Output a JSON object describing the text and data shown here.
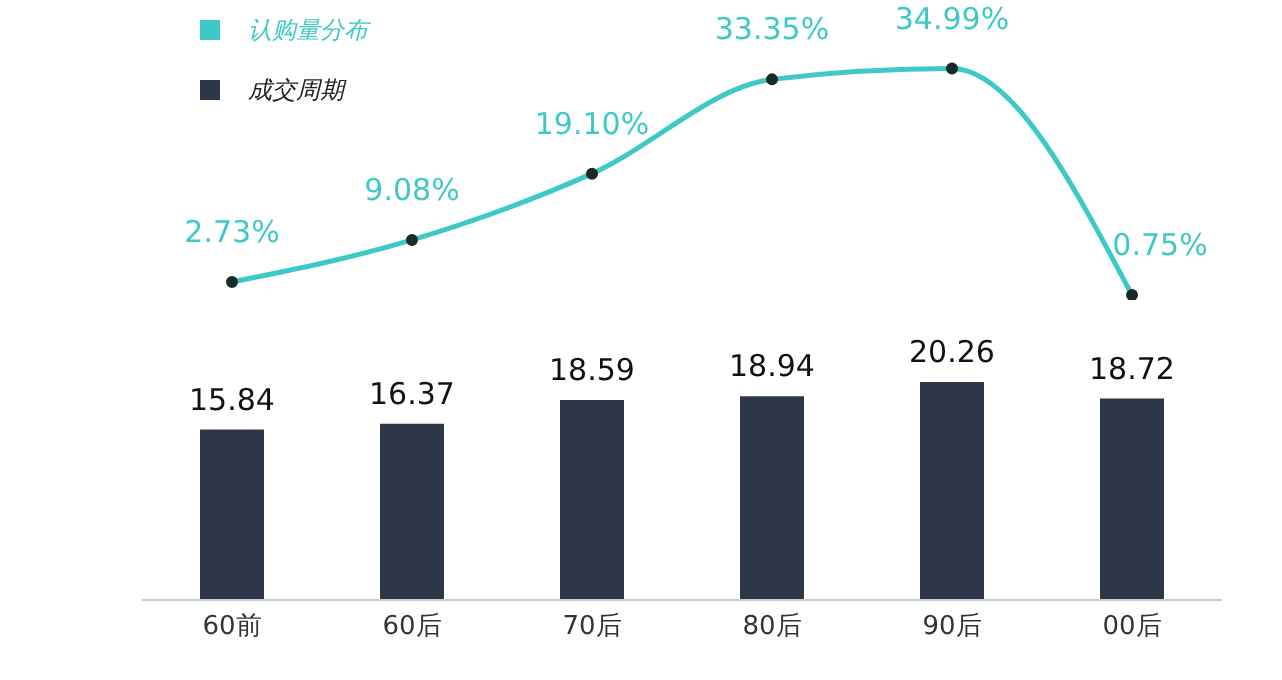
{
  "chart_data": [
    {
      "type": "line",
      "categories": [
        null,
        null,
        null,
        null,
        null,
        null
      ],
      "legend": "top left",
      "tick_labels": false,
      "marker": "circle",
      "series": [
        {
          "name": "认购量分布",
          "color": "#3ec9c6",
          "values": [
            2.73,
            9.08,
            19.1,
            33.35,
            34.99,
            0.75
          ],
          "value_labels": [
            "2.73%",
            "9.08%",
            "19.10%",
            "33.35%",
            "34.99%",
            "0.75%"
          ]
        }
      ]
    },
    {
      "type": "bar",
      "categories": [
        "60前",
        "60后",
        "70后",
        "80后",
        "90后",
        "00后"
      ],
      "legend": "top left",
      "tick_labels": "x",
      "series": [
        {
          "name": "成交周期",
          "color": "#2e3748",
          "values": [
            15.84,
            16.37,
            18.59,
            18.94,
            20.26,
            18.72
          ],
          "value_labels": [
            "15.84",
            "16.37",
            "18.59",
            "18.94",
            "20.26",
            "18.72"
          ]
        }
      ]
    }
  ]
}
